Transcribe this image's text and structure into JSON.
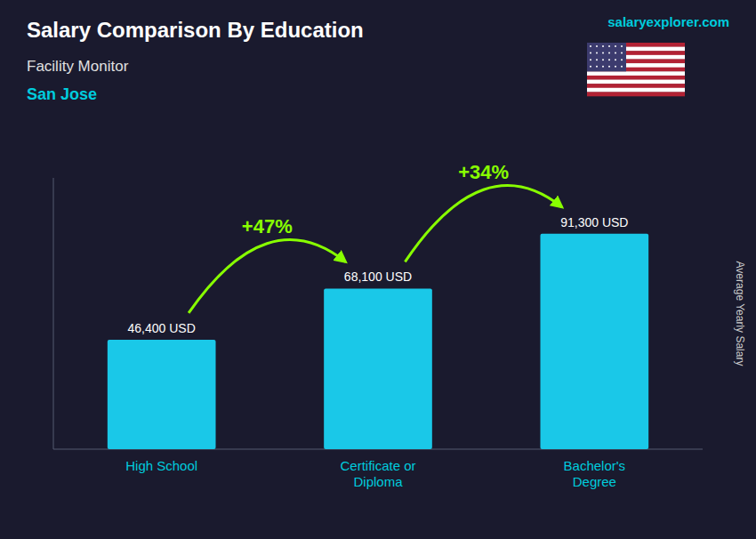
{
  "chart_data": {
    "type": "bar",
    "title": "Salary Comparison By Education",
    "subtitle": "Facility Monitor",
    "annotations": [
      "San Jose",
      "salaryexplorer.com",
      "+47%",
      "+34%"
    ],
    "ylabel": "Average Yearly Salary",
    "categories": [
      "High School",
      "Certificate or\nDiploma",
      "Bachelor's\nDegree"
    ],
    "values": [
      46400,
      68100,
      91300
    ],
    "value_labels": [
      "46,400 USD",
      "68,100 USD",
      "91,300 USD"
    ],
    "data_labels": true,
    "color": "#1ac8e8",
    "ylim": [
      0,
      115000
    ],
    "grid": false,
    "tick_labels": "x"
  }
}
